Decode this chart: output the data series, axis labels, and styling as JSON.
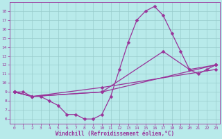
{
  "xlabel": "Windchill (Refroidissement éolien,°C)",
  "x_ticks": [
    0,
    1,
    2,
    3,
    4,
    5,
    6,
    7,
    8,
    9,
    10,
    11,
    12,
    13,
    14,
    15,
    16,
    17,
    18,
    19,
    20,
    21,
    22,
    23
  ],
  "ylim": [
    5.5,
    19.0
  ],
  "xlim": [
    -0.5,
    23.5
  ],
  "y_ticks": [
    6,
    7,
    8,
    9,
    10,
    11,
    12,
    13,
    14,
    15,
    16,
    17,
    18
  ],
  "background_color": "#b8eaea",
  "line_color": "#993399",
  "grid_color": "#99cccc",
  "series": [
    {
      "x": [
        0,
        1,
        2,
        3,
        4,
        5,
        6,
        7,
        8,
        9,
        10,
        11,
        12,
        13,
        14,
        15,
        16,
        17,
        18,
        19,
        20,
        21,
        22,
        23
      ],
      "y": [
        9.0,
        9.0,
        8.5,
        8.5,
        8.0,
        7.5,
        6.5,
        6.5,
        6.0,
        6.0,
        6.5,
        8.5,
        11.5,
        14.5,
        17.0,
        18.0,
        18.5,
        17.5,
        15.5,
        13.5,
        11.5,
        11.0,
        11.5,
        12.0
      ]
    },
    {
      "x": [
        0,
        2,
        10,
        23
      ],
      "y": [
        9.0,
        8.5,
        9.0,
        12.0
      ]
    },
    {
      "x": [
        0,
        2,
        10,
        23
      ],
      "y": [
        9.0,
        8.5,
        9.5,
        11.5
      ]
    },
    {
      "x": [
        0,
        2,
        10,
        17,
        20,
        23
      ],
      "y": [
        9.0,
        8.5,
        9.0,
        13.5,
        11.5,
        12.0
      ]
    }
  ]
}
